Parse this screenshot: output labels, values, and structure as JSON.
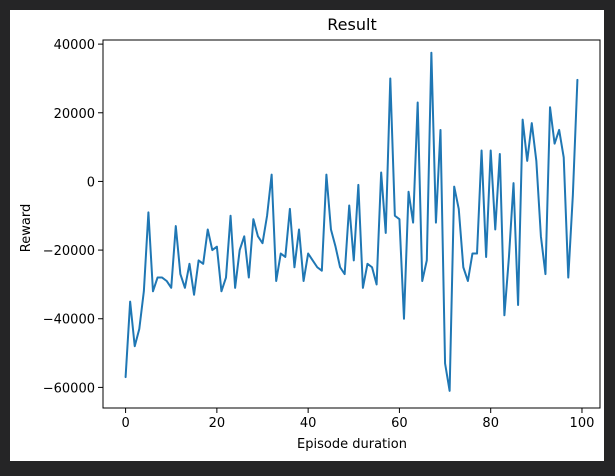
{
  "chart_data": {
    "type": "line",
    "title": "Result",
    "xlabel": "Episode duration",
    "ylabel": "Reward",
    "xlim": [
      -4.95,
      103.95
    ],
    "ylim": [
      -66000,
      41200
    ],
    "xticks": [
      0,
      20,
      40,
      60,
      80,
      100
    ],
    "yticks": [
      -60000,
      -40000,
      -20000,
      0,
      20000,
      40000
    ],
    "grid": false,
    "series_color": "#1f77b4",
    "series": [
      {
        "x": [
          0,
          1,
          2,
          3,
          4,
          5,
          6,
          7,
          8,
          9,
          10,
          11,
          12,
          13,
          14,
          15,
          16,
          17,
          18,
          19,
          20,
          21,
          22,
          23,
          24,
          25,
          26,
          27,
          28,
          29,
          30,
          31,
          32,
          33,
          34,
          35,
          36,
          37,
          38,
          39,
          40,
          41,
          42,
          43,
          44,
          45,
          46,
          47,
          48,
          49,
          50,
          51,
          52,
          53,
          54,
          55,
          56,
          57,
          58,
          59,
          60,
          61,
          62,
          63,
          64,
          65,
          66,
          67,
          68,
          69,
          70,
          71,
          72,
          73,
          74,
          75,
          76,
          77,
          78,
          79,
          80,
          81,
          82,
          83,
          84,
          85,
          86,
          87,
          88,
          89,
          90,
          91,
          92,
          93,
          94,
          95,
          96,
          97,
          98,
          99
        ],
        "values": [
          -57000,
          -35000,
          -48000,
          -43000,
          -32000,
          -9000,
          -32000,
          -28000,
          -28000,
          -29000,
          -31000,
          -13000,
          -27000,
          -31000,
          -24000,
          -33000,
          -23000,
          -24000,
          -14000,
          -20000,
          -19000,
          -32000,
          -28000,
          -10000,
          -31000,
          -20000,
          -16000,
          -28000,
          -11000,
          -16000,
          -18000,
          -10000,
          2000,
          -29000,
          -21000,
          -22000,
          -8000,
          -25000,
          -14000,
          -29000,
          -21000,
          -23000,
          -25000,
          -26000,
          2000,
          -14000,
          -19000,
          -25000,
          -27000,
          -7000,
          -23000,
          -1000,
          -31000,
          -24000,
          -25000,
          -30000,
          2600,
          -15000,
          30000,
          -10000,
          -11000,
          -40000,
          -3000,
          -12000,
          23000,
          -29000,
          -23000,
          37500,
          -12000,
          15000,
          -53000,
          -61000,
          -1500,
          -8000,
          -25000,
          -29000,
          -21000,
          -21000,
          9000,
          -22000,
          9000,
          -14000,
          8000,
          -39000,
          -22000,
          -500,
          -36000,
          18000,
          6000,
          17000,
          6000,
          -16000,
          -27000,
          21600,
          11000,
          15000,
          7000,
          -28000,
          -4000,
          29600
        ]
      }
    ]
  }
}
